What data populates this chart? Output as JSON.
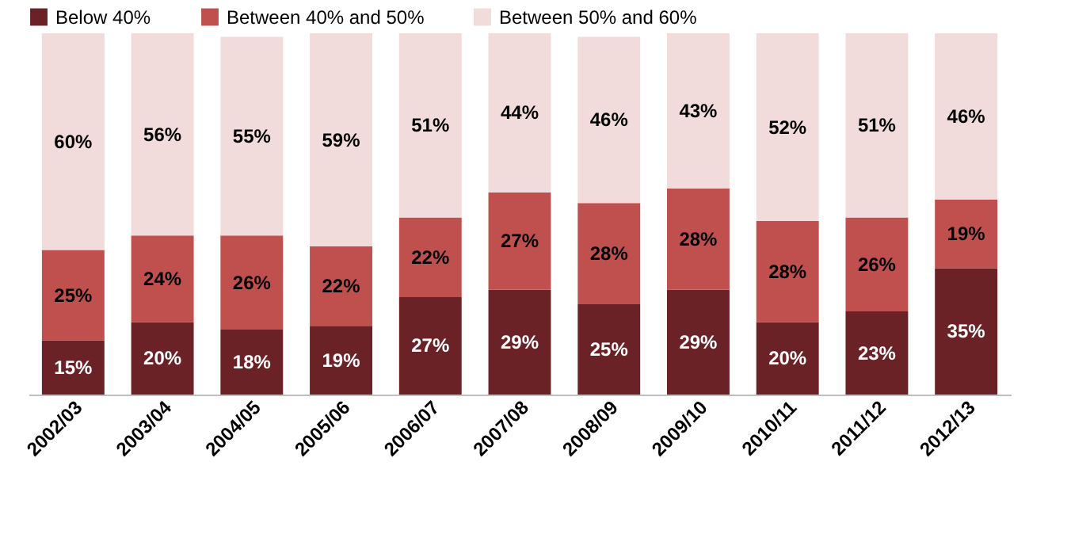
{
  "chart_data": {
    "type": "bar",
    "stacked": true,
    "legend": "top left",
    "grid": false,
    "categories": [
      "2002/03",
      "2003/04",
      "2004/05",
      "2005/06",
      "2006/07",
      "2007/08",
      "2008/09",
      "2009/10",
      "2010/11",
      "2011/12",
      "2012/13"
    ],
    "series": [
      {
        "name": "Below 40%",
        "color": "#6b2226",
        "values": [
          15,
          20,
          18,
          19,
          27,
          29,
          25,
          29,
          20,
          23,
          35
        ],
        "value_labels": [
          "15%",
          "20%",
          "18%",
          "19%",
          "27%",
          "29%",
          "25%",
          "29%",
          "20%",
          "23%",
          "35%"
        ]
      },
      {
        "name": "Between 40% and 50%",
        "color": "#c0504d",
        "values": [
          25,
          24,
          26,
          22,
          22,
          27,
          28,
          28,
          28,
          26,
          19
        ],
        "value_labels": [
          "25%",
          "24%",
          "26%",
          "22%",
          "22%",
          "27%",
          "28%",
          "28%",
          "28%",
          "26%",
          "19%"
        ]
      },
      {
        "name": "Between 50% and 60%",
        "color": "#f2dcdb",
        "values": [
          60,
          56,
          55,
          59,
          51,
          44,
          46,
          43,
          52,
          51,
          46
        ],
        "value_labels": [
          "60%",
          "56%",
          "55%",
          "59%",
          "51%",
          "44%",
          "46%",
          "43%",
          "52%",
          "51%",
          "46%"
        ]
      }
    ]
  }
}
